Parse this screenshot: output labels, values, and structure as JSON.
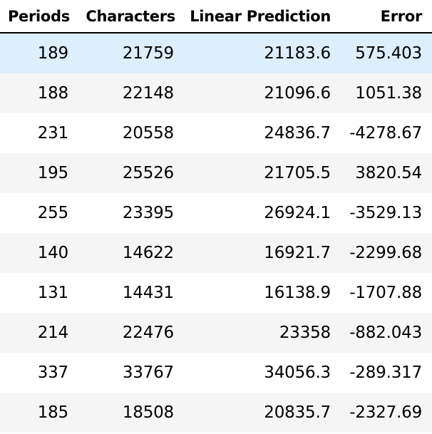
{
  "table": {
    "headers": [
      "Periods",
      "Characters",
      "Linear Prediction",
      "Error"
    ],
    "rows": [
      [
        "189",
        "21759",
        "21183.6",
        "575.403"
      ],
      [
        "188",
        "22148",
        "21096.6",
        "1051.38"
      ],
      [
        "231",
        "20558",
        "24836.7",
        "-4278.67"
      ],
      [
        "195",
        "25526",
        "21705.5",
        "3820.54"
      ],
      [
        "255",
        "23395",
        "26924.1",
        "-3529.13"
      ],
      [
        "140",
        "14622",
        "16921.7",
        "-2299.68"
      ],
      [
        "131",
        "14431",
        "16138.9",
        "-1707.88"
      ],
      [
        "214",
        "22476",
        "23358",
        "-882.043"
      ],
      [
        "337",
        "33767",
        "34056.3",
        "-289.317"
      ],
      [
        "185",
        "18508",
        "20835.7",
        "-2327.69"
      ]
    ],
    "highlighted_row": 0,
    "colors": {
      "highlight": "#ddeefc",
      "stripe": "#f5f5f5",
      "header_rule": "#000000"
    }
  }
}
